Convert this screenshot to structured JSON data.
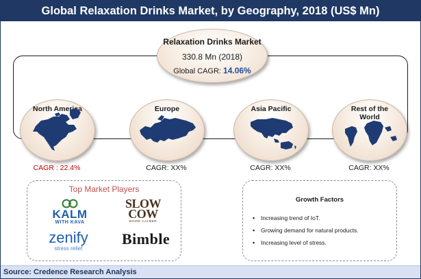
{
  "title": "Global Relaxation Drinks Market, by Geography, 2018 (US$ Mn)",
  "center": {
    "title": "Relaxation Drinks Market",
    "value": "330.8 Mn (2018)",
    "cagr_label": "Global CAGR: ",
    "cagr_value": "14.06%"
  },
  "regions": [
    {
      "name": "North America",
      "cagr": "CAGR : 22.4%",
      "map_icon": "north-america-map-icon"
    },
    {
      "name": "Europe",
      "cagr": "CAGR: XX%",
      "map_icon": "europe-map-icon"
    },
    {
      "name": "Asia Pacific",
      "cagr": "CAGR: XX%",
      "map_icon": "asia-pacific-map-icon"
    },
    {
      "name_line1": "Rest of the",
      "name_line2": "World",
      "cagr": "CAGR: XX%",
      "map_icon": "rest-of-world-map-icon"
    }
  ],
  "players": {
    "title": "Top Market Players",
    "logos": [
      {
        "line1": "KALM",
        "line2": "WITH KAVA"
      },
      {
        "line1": "SLOW",
        "line2": "COW",
        "line3": "BOIRE CALMER"
      },
      {
        "line1": "zenify",
        "line2": "stress relief"
      },
      {
        "line1": "Bimble"
      }
    ]
  },
  "factors": {
    "title": "Growth Factors",
    "items": [
      "Increasing trend of IoT.",
      "Growing demand for natural products.",
      "Increasing level of stress."
    ]
  },
  "source": "Source: Credence Research Analysis",
  "colors": {
    "title_bar": "#1f3864",
    "map_fill": "#1f3b73",
    "highlight_cagr": "#c00000",
    "players_title": "#c0504d",
    "global_cagr": "#1f4e9c"
  }
}
